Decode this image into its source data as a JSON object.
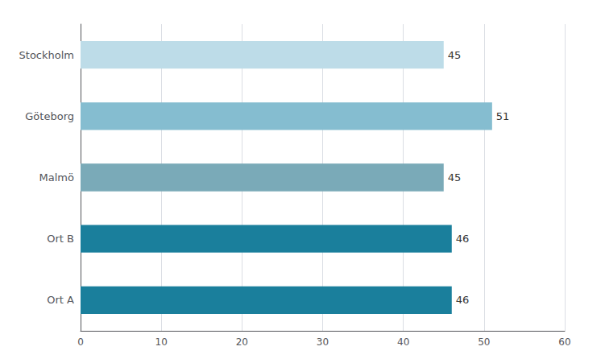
{
  "chart_data": {
    "type": "bar",
    "orientation": "horizontal",
    "categories": [
      "Stockholm",
      "Göteborg",
      "Malmö",
      "Ort B",
      "Ort A"
    ],
    "values": [
      45,
      51,
      45,
      46,
      46
    ],
    "colors": [
      "#bddce8",
      "#85bdd0",
      "#7aaab8",
      "#1a7f9c",
      "#1a7f9c"
    ],
    "xlim": [
      0,
      60
    ],
    "xticks": [
      0,
      10,
      20,
      30,
      40,
      50,
      60
    ],
    "grid": true,
    "data_labels": true
  }
}
